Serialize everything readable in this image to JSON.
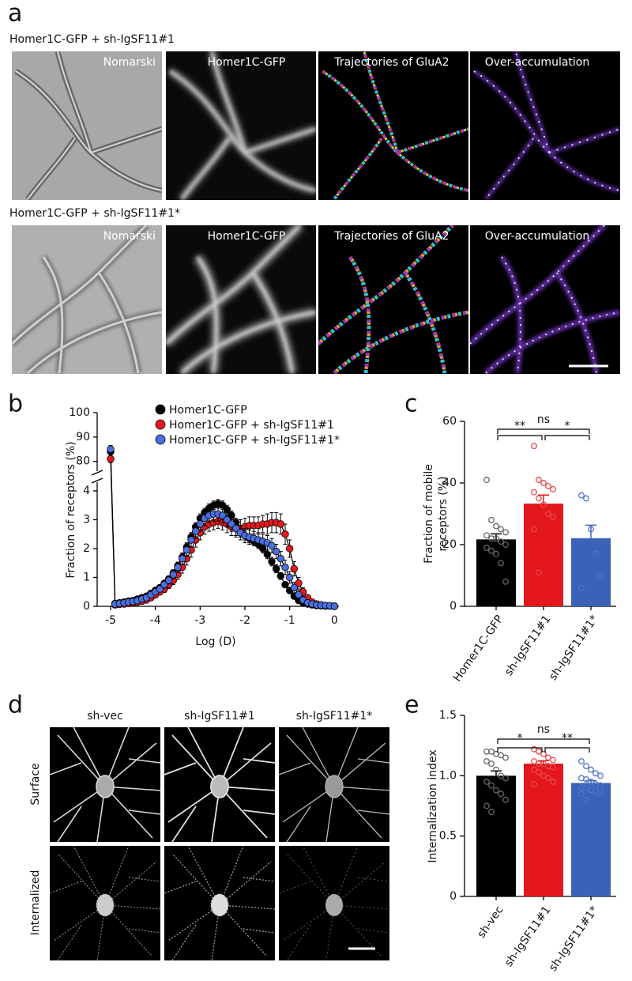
{
  "figure": {
    "panel_a": {
      "label": "a",
      "rows": [
        {
          "title": "Homer1C-GFP + sh-IgSF11#1",
          "color": "#e8171f",
          "images": [
            "Nomarski",
            "Homer1C-GFP",
            "Trajectories of GluA2",
            "Over-accumulation"
          ]
        },
        {
          "title": "Homer1C-GFP + sh-IgSF11#1*",
          "color": "#3e66c6",
          "images": [
            "Nomarski",
            "Homer1C-GFP",
            "Trajectories of GluA2",
            "Over-accumulation"
          ]
        }
      ]
    },
    "panel_d": {
      "label": "d",
      "columns": [
        "sh-vec",
        "sh-IgSF11#1",
        "sh-IgSF11#1*"
      ],
      "column_colors": [
        "#000000",
        "#e8171f",
        "#3e66c6"
      ],
      "rows": [
        "Surface",
        "Internalized"
      ]
    }
  },
  "chart_data": [
    {
      "panel": "b",
      "type": "line",
      "xlabel": "Log (D)",
      "ylabel": "Fraction of receptors (%)",
      "x": [
        -5,
        -4.9,
        -4.8,
        -4.7,
        -4.6,
        -4.5,
        -4.4,
        -4.3,
        -4.2,
        -4.1,
        -4,
        -3.9,
        -3.8,
        -3.7,
        -3.6,
        -3.5,
        -3.4,
        -3.3,
        -3.2,
        -3.1,
        -3,
        -2.9,
        -2.8,
        -2.7,
        -2.6,
        -2.5,
        -2.4,
        -2.3,
        -2.2,
        -2.1,
        -2,
        -1.9,
        -1.8,
        -1.7,
        -1.6,
        -1.5,
        -1.4,
        -1.3,
        -1.2,
        -1.1,
        -1,
        -0.9,
        -0.8,
        -0.7,
        -0.6,
        -0.5,
        -0.4,
        -0.3,
        -0.2,
        -0.1,
        0
      ],
      "xlim": [
        -5.3,
        0.1
      ],
      "xticks": [
        -5,
        -4,
        -3,
        -2,
        -1,
        0
      ],
      "ylim": [
        0,
        100
      ],
      "ybreak": [
        4.3,
        76
      ],
      "yticks": [
        0,
        1,
        2,
        3,
        4,
        80,
        90,
        100
      ],
      "series": [
        {
          "name": "Homer1C-GFP",
          "color": "#000000",
          "values": [
            84,
            0.1,
            0.12,
            0.15,
            0.18,
            0.2,
            0.25,
            0.3,
            0.35,
            0.45,
            0.55,
            0.65,
            0.8,
            0.95,
            1.15,
            1.4,
            1.7,
            2.05,
            2.4,
            2.75,
            3.05,
            3.25,
            3.4,
            3.5,
            3.55,
            3.5,
            3.35,
            3.15,
            2.9,
            2.65,
            2.45,
            2.35,
            2.25,
            2.15,
            2.0,
            1.8,
            1.55,
            1.3,
            1.05,
            0.75,
            0.55,
            0.35,
            0.2,
            0.12,
            0.08,
            0.05,
            0.03,
            0.02,
            0.01,
            0.01,
            0
          ],
          "errors": [
            1.5,
            0.03,
            0.03,
            0.04,
            0.04,
            0.05,
            0.05,
            0.06,
            0.06,
            0.07,
            0.08,
            0.09,
            0.1,
            0.1,
            0.12,
            0.13,
            0.14,
            0.15,
            0.15,
            0.15,
            0.15,
            0.15,
            0.15,
            0.15,
            0.15,
            0.15,
            0.15,
            0.15,
            0.15,
            0.15,
            0.15,
            0.15,
            0.15,
            0.15,
            0.15,
            0.15,
            0.15,
            0.14,
            0.12,
            0.1,
            0.08,
            0.06,
            0.05,
            0.04,
            0.03,
            0.02,
            0.02,
            0.01,
            0.01,
            0.01,
            0
          ]
        },
        {
          "name": "Homer1C-GFP + sh-IgSF11#1",
          "color": "#e8171f",
          "values": [
            81,
            0.05,
            0.07,
            0.08,
            0.1,
            0.12,
            0.15,
            0.18,
            0.22,
            0.3,
            0.4,
            0.5,
            0.6,
            0.75,
            0.9,
            1.1,
            1.35,
            1.65,
            1.95,
            2.3,
            2.55,
            2.75,
            2.85,
            2.9,
            2.95,
            2.9,
            2.85,
            2.75,
            2.7,
            2.7,
            2.75,
            2.8,
            2.8,
            2.8,
            2.85,
            2.85,
            2.9,
            2.9,
            2.85,
            2.5,
            2.0,
            1.3,
            0.8,
            0.5,
            0.3,
            0.15,
            0.08,
            0.05,
            0.03,
            0.02,
            0
          ],
          "errors": [
            1.5,
            0.03,
            0.03,
            0.04,
            0.05,
            0.05,
            0.06,
            0.07,
            0.08,
            0.08,
            0.1,
            0.1,
            0.12,
            0.13,
            0.15,
            0.17,
            0.2,
            0.22,
            0.25,
            0.25,
            0.25,
            0.25,
            0.25,
            0.25,
            0.25,
            0.25,
            0.3,
            0.3,
            0.3,
            0.3,
            0.3,
            0.3,
            0.3,
            0.3,
            0.3,
            0.35,
            0.35,
            0.35,
            0.35,
            0.35,
            0.3,
            0.25,
            0.2,
            0.15,
            0.1,
            0.08,
            0.05,
            0.04,
            0.03,
            0.02,
            0
          ]
        },
        {
          "name": "Homer1C-GFP + sh-IgSF11#1*",
          "color": "#4a6fe0",
          "values": [
            85,
            0.08,
            0.1,
            0.12,
            0.15,
            0.17,
            0.2,
            0.25,
            0.3,
            0.4,
            0.5,
            0.6,
            0.75,
            0.9,
            1.1,
            1.35,
            1.65,
            1.95,
            2.3,
            2.6,
            2.85,
            3.05,
            3.15,
            3.2,
            3.2,
            3.15,
            3.0,
            2.85,
            2.7,
            2.55,
            2.45,
            2.4,
            2.35,
            2.3,
            2.25,
            2.2,
            2.1,
            1.9,
            1.65,
            1.35,
            1.0,
            0.65,
            0.4,
            0.22,
            0.12,
            0.08,
            0.05,
            0.04,
            0.03,
            0.02,
            0
          ],
          "errors": [
            1.5,
            0.03,
            0.03,
            0.04,
            0.05,
            0.05,
            0.06,
            0.07,
            0.08,
            0.08,
            0.1,
            0.1,
            0.12,
            0.13,
            0.15,
            0.17,
            0.2,
            0.22,
            0.25,
            0.25,
            0.25,
            0.25,
            0.25,
            0.25,
            0.25,
            0.25,
            0.25,
            0.25,
            0.25,
            0.25,
            0.25,
            0.25,
            0.25,
            0.25,
            0.25,
            0.25,
            0.25,
            0.25,
            0.25,
            0.25,
            0.2,
            0.18,
            0.15,
            0.1,
            0.08,
            0.06,
            0.05,
            0.04,
            0.03,
            0.02,
            0
          ]
        }
      ]
    },
    {
      "panel": "c",
      "type": "bar",
      "ylabel": [
        "Fraction of mobile",
        "receptors (%)"
      ],
      "categories": [
        "Homer1C-GFP",
        "sh-IgSF11#1",
        "sh-IgSF11#1*"
      ],
      "colors": [
        "#000000",
        "#e3171c",
        "#3a63b8"
      ],
      "point_colors": [
        "#666666",
        "#e8474c",
        "#4a74cc"
      ],
      "values": [
        21.7,
        33.3,
        22.1
      ],
      "errors": [
        1.8,
        2.8,
        4.2
      ],
      "points": [
        [
          41,
          28,
          26,
          25,
          24,
          23,
          22,
          22,
          21,
          20,
          19,
          18,
          17,
          14,
          8
        ],
        [
          52,
          41,
          40,
          39,
          38,
          37,
          35,
          33,
          30,
          29,
          25,
          11
        ],
        [
          36,
          35,
          25,
          17,
          10,
          6
        ]
      ],
      "ylim": [
        0,
        60
      ],
      "yticks": [
        0,
        20,
        40,
        60
      ],
      "significance": [
        {
          "from": 0,
          "to": 2,
          "label": "ns"
        },
        {
          "from": 0,
          "to": 1,
          "label": "**"
        },
        {
          "from": 1,
          "to": 2,
          "label": "*"
        }
      ]
    },
    {
      "panel": "e",
      "type": "bar",
      "ylabel": [
        "Internalization index"
      ],
      "categories": [
        "sh-vec",
        "sh-IgSF11#1",
        "sh-IgSF11#1*"
      ],
      "colors": [
        "#000000",
        "#e3171c",
        "#3a63b8"
      ],
      "point_colors": [
        "#666666",
        "#e8474c",
        "#4a74cc"
      ],
      "values": [
        1.0,
        1.1,
        0.94
      ],
      "errors": [
        0.04,
        0.025,
        0.02
      ],
      "points": [
        [
          1.2,
          1.2,
          1.18,
          1.17,
          1.15,
          1.12,
          1.1,
          1.05,
          1.0,
          0.98,
          0.95,
          0.92,
          0.88,
          0.85,
          0.8,
          0.75,
          0.7
        ],
        [
          1.22,
          1.2,
          1.18,
          1.15,
          1.13,
          1.12,
          1.1,
          1.1,
          1.08,
          1.07,
          1.05,
          1.03,
          1.0,
          0.98,
          0.95,
          0.93
        ],
        [
          1.12,
          1.08,
          1.05,
          1.02,
          1.0,
          0.98,
          0.97,
          0.95,
          0.93,
          0.92,
          0.9,
          0.9,
          0.88,
          0.87,
          0.86,
          0.85,
          0.8
        ]
      ],
      "ylim": [
        0,
        1.5
      ],
      "yticks": [
        0,
        0.5,
        {
          "value": 1,
          "label": "1.0"
        },
        1.5
      ],
      "significance": [
        {
          "from": 0,
          "to": 2,
          "label": "ns"
        },
        {
          "from": 0,
          "to": 1,
          "label": "*"
        },
        {
          "from": 1,
          "to": 2,
          "label": "**"
        }
      ]
    }
  ]
}
